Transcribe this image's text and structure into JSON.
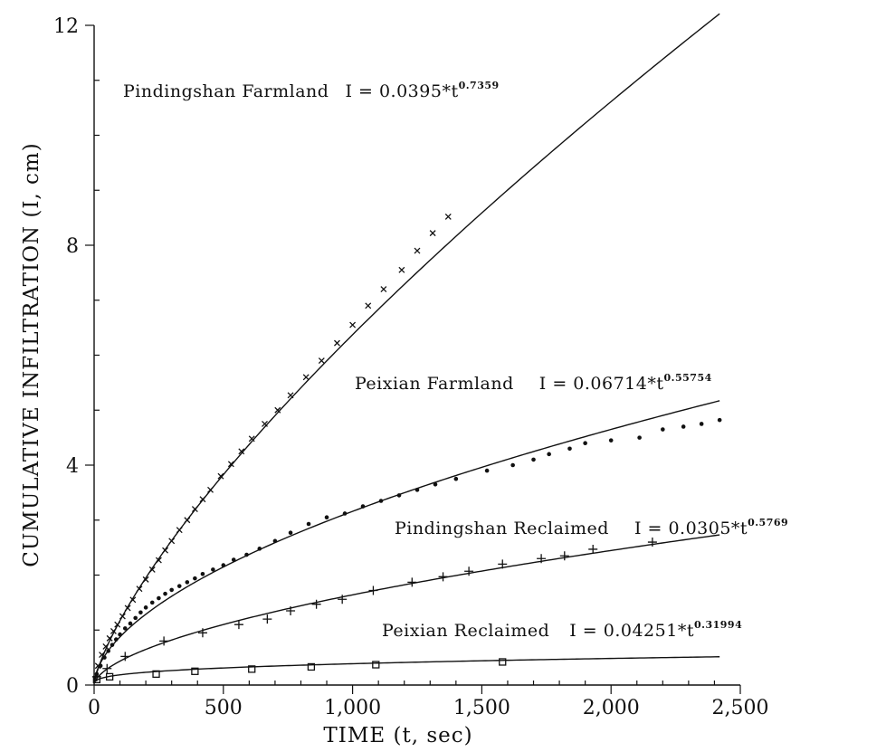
{
  "chart_data": {
    "type": "scatter",
    "title": "",
    "xlabel": "TIME (t, sec)",
    "ylabel": "CUMULATIVE INFILTRATION (I, cm)",
    "xlim": [
      0,
      2500
    ],
    "ylim": [
      0,
      12
    ],
    "x_ticks": [
      0,
      500,
      1000,
      1500,
      2000,
      2500
    ],
    "x_tick_labels": [
      "0",
      "500",
      "1,000",
      "1,500",
      "2,000",
      "2,500"
    ],
    "y_ticks": [
      0,
      4,
      8,
      12
    ],
    "y_tick_labels": [
      "0",
      "4",
      "8",
      "12"
    ],
    "grid": false,
    "legend": "none",
    "series": [
      {
        "key": "pf",
        "name": "Pindingshan Farmland",
        "equation": "I = 0.0395*t",
        "exponent_label": "0.7359",
        "coef": 0.0395,
        "exp": 0.7359,
        "marker": "x",
        "fit_xmax": 2420,
        "points": [
          [
            15,
            0.35
          ],
          [
            30,
            0.55
          ],
          [
            45,
            0.7
          ],
          [
            60,
            0.85
          ],
          [
            75,
            0.98
          ],
          [
            90,
            1.1
          ],
          [
            110,
            1.25
          ],
          [
            130,
            1.4
          ],
          [
            150,
            1.55
          ],
          [
            175,
            1.75
          ],
          [
            200,
            1.92
          ],
          [
            225,
            2.1
          ],
          [
            250,
            2.27
          ],
          [
            275,
            2.45
          ],
          [
            300,
            2.62
          ],
          [
            330,
            2.82
          ],
          [
            360,
            3.0
          ],
          [
            390,
            3.2
          ],
          [
            420,
            3.38
          ],
          [
            450,
            3.55
          ],
          [
            490,
            3.8
          ],
          [
            530,
            4.02
          ],
          [
            570,
            4.25
          ],
          [
            610,
            4.48
          ],
          [
            660,
            4.75
          ],
          [
            710,
            5.0
          ],
          [
            760,
            5.27
          ],
          [
            820,
            5.6
          ],
          [
            880,
            5.9
          ],
          [
            940,
            6.22
          ],
          [
            1000,
            6.55
          ],
          [
            1060,
            6.9
          ],
          [
            1120,
            7.2
          ],
          [
            1190,
            7.55
          ],
          [
            1250,
            7.9
          ],
          [
            1310,
            8.22
          ],
          [
            1370,
            8.52
          ]
        ]
      },
      {
        "key": "px",
        "name": "Peixian Farmland",
        "equation": "I = 0.06714*t",
        "exponent_label": "0.55754",
        "coef": 0.06714,
        "exp": 0.55754,
        "marker": "*",
        "fit_xmax": 2420,
        "points": [
          [
            10,
            0.2
          ],
          [
            25,
            0.35
          ],
          [
            40,
            0.5
          ],
          [
            55,
            0.62
          ],
          [
            70,
            0.73
          ],
          [
            85,
            0.83
          ],
          [
            100,
            0.92
          ],
          [
            120,
            1.03
          ],
          [
            140,
            1.12
          ],
          [
            160,
            1.22
          ],
          [
            180,
            1.32
          ],
          [
            200,
            1.41
          ],
          [
            225,
            1.5
          ],
          [
            250,
            1.58
          ],
          [
            275,
            1.66
          ],
          [
            300,
            1.73
          ],
          [
            330,
            1.8
          ],
          [
            360,
            1.87
          ],
          [
            390,
            1.94
          ],
          [
            420,
            2.02
          ],
          [
            460,
            2.1
          ],
          [
            500,
            2.18
          ],
          [
            540,
            2.28
          ],
          [
            590,
            2.37
          ],
          [
            640,
            2.48
          ],
          [
            700,
            2.62
          ],
          [
            760,
            2.77
          ],
          [
            830,
            2.93
          ],
          [
            900,
            3.05
          ],
          [
            970,
            3.12
          ],
          [
            1040,
            3.25
          ],
          [
            1110,
            3.35
          ],
          [
            1180,
            3.45
          ],
          [
            1250,
            3.55
          ],
          [
            1320,
            3.65
          ],
          [
            1400,
            3.75
          ],
          [
            1520,
            3.9
          ],
          [
            1620,
            4.0
          ],
          [
            1700,
            4.1
          ],
          [
            1760,
            4.2
          ],
          [
            1840,
            4.3
          ],
          [
            1900,
            4.4
          ],
          [
            2000,
            4.45
          ],
          [
            2110,
            4.5
          ],
          [
            2200,
            4.65
          ],
          [
            2280,
            4.7
          ],
          [
            2350,
            4.75
          ],
          [
            2420,
            4.82
          ]
        ]
      },
      {
        "key": "pr",
        "name": "Pindingshan Reclaimed",
        "equation": "I = 0.0305*t",
        "exponent_label": "0.5769",
        "coef": 0.0305,
        "exp": 0.5769,
        "marker": "+",
        "fit_xmax": 2420,
        "points": [
          [
            10,
            0.15
          ],
          [
            50,
            0.3
          ],
          [
            120,
            0.52
          ],
          [
            270,
            0.8
          ],
          [
            420,
            0.95
          ],
          [
            560,
            1.1
          ],
          [
            670,
            1.2
          ],
          [
            760,
            1.35
          ],
          [
            860,
            1.47
          ],
          [
            960,
            1.56
          ],
          [
            1080,
            1.72
          ],
          [
            1230,
            1.87
          ],
          [
            1350,
            1.97
          ],
          [
            1450,
            2.07
          ],
          [
            1580,
            2.2
          ],
          [
            1730,
            2.3
          ],
          [
            1820,
            2.35
          ],
          [
            1930,
            2.47
          ],
          [
            2160,
            2.6
          ]
        ]
      },
      {
        "key": "prc",
        "name": "Peixian Reclaimed",
        "equation": "I = 0.04251*t",
        "exponent_label": "0.31994",
        "coef": 0.04251,
        "exp": 0.31994,
        "marker": "square",
        "fit_xmax": 2420,
        "points": [
          [
            10,
            0.1
          ],
          [
            60,
            0.15
          ],
          [
            240,
            0.2
          ],
          [
            390,
            0.25
          ],
          [
            610,
            0.29
          ],
          [
            840,
            0.33
          ],
          [
            1090,
            0.37
          ],
          [
            1580,
            0.42
          ]
        ]
      }
    ]
  }
}
